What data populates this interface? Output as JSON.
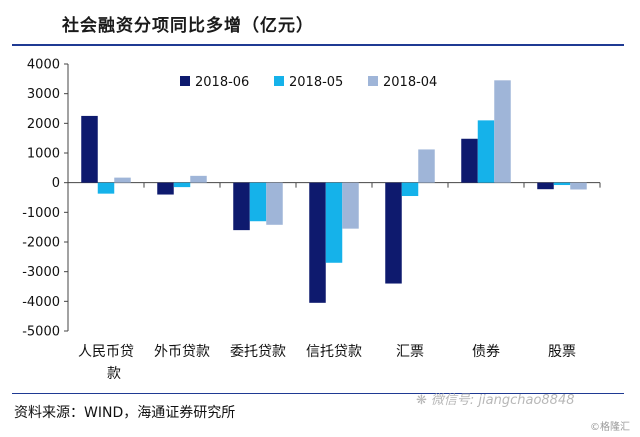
{
  "title": "社会融资分项同比多增（亿元）",
  "source": "资料来源：WIND，海通证券研究所",
  "watermark": "微信号: jiangchao8848",
  "corner_mark": "©格隆汇",
  "chart_data": {
    "type": "bar",
    "title": "社会融资分项同比多增（亿元）",
    "xlabel": "",
    "ylabel": "",
    "ylim": [
      -5000,
      4000
    ],
    "yticks": [
      4000,
      3000,
      2000,
      1000,
      0,
      -1000,
      -2000,
      -3000,
      -4000,
      -5000
    ],
    "grid": false,
    "legend_position": "top",
    "categories": [
      "人民币贷款",
      "外币贷款",
      "委托贷款",
      "信托贷款",
      "汇票",
      "债券",
      "股票"
    ],
    "series": [
      {
        "name": "2018-06",
        "color": "#0e1a6e",
        "values": [
          2250,
          -400,
          -1600,
          -4050,
          -3400,
          1480,
          -220
        ]
      },
      {
        "name": "2018-05",
        "color": "#15b2ea",
        "values": [
          -370,
          -150,
          -1300,
          -2700,
          -450,
          2100,
          -80
        ]
      },
      {
        "name": "2018-04",
        "color": "#9fb5d8",
        "values": [
          170,
          230,
          -1420,
          -1550,
          1120,
          3450,
          -230
        ]
      }
    ]
  }
}
